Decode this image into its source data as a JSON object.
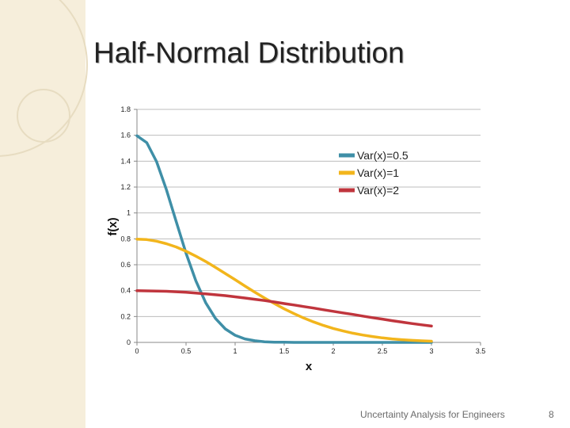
{
  "slide": {
    "title": "Half-Normal Distribution",
    "footer": "Uncertainty Analysis for Engineers",
    "page_number": "8"
  },
  "colors": {
    "background": "#ffffff",
    "sidebar": "#f6eedb",
    "decor_circle": "#e7dcc1"
  },
  "chart_data": {
    "type": "line",
    "xlabel": "x",
    "ylabel": "f(x)",
    "xlim": [
      0,
      3.5
    ],
    "ylim": [
      0,
      1.8
    ],
    "x_ticks": [
      "0",
      "0.5",
      "1",
      "1.5",
      "2",
      "2.5",
      "3",
      "3.5"
    ],
    "y_ticks": [
      "0",
      "0.2",
      "0.4",
      "0.6",
      "0.8",
      "1",
      "1.2",
      "1.4",
      "1.6",
      "1.8"
    ],
    "grid": "horizontal",
    "legend_position": "right",
    "x": [
      0,
      0.1,
      0.2,
      0.3,
      0.4,
      0.5,
      0.6,
      0.7,
      0.8,
      0.9,
      1.0,
      1.1,
      1.2,
      1.3,
      1.4,
      1.5,
      1.6,
      1.7,
      1.8,
      1.9,
      2.0,
      2.1,
      2.2,
      2.3,
      2.4,
      2.5,
      2.6,
      2.7,
      2.8,
      2.9,
      3.0
    ],
    "series": [
      {
        "name": "Var(x)=0.5",
        "color": "#3f8fa7",
        "values": [
          1.596,
          1.543,
          1.396,
          1.18,
          0.933,
          0.689,
          0.476,
          0.307,
          0.185,
          0.104,
          0.055,
          0.027,
          0.013,
          0.005,
          0.002,
          0.001,
          0.0,
          0.0,
          0.0,
          0.0,
          0.0,
          0.0,
          0.0,
          0.0,
          0.0,
          0.0,
          0.0,
          0.0,
          0.0,
          0.0,
          0.0
        ]
      },
      {
        "name": "Var(x)=1",
        "color": "#f2b51c",
        "values": [
          0.798,
          0.794,
          0.782,
          0.762,
          0.737,
          0.704,
          0.666,
          0.625,
          0.579,
          0.532,
          0.484,
          0.435,
          0.388,
          0.343,
          0.3,
          0.259,
          0.222,
          0.188,
          0.158,
          0.131,
          0.108,
          0.088,
          0.071,
          0.057,
          0.045,
          0.035,
          0.027,
          0.021,
          0.016,
          0.012,
          0.009
        ]
      },
      {
        "name": "Var(x)=2",
        "color": "#c0353d",
        "values": [
          0.399,
          0.398,
          0.397,
          0.395,
          0.391,
          0.387,
          0.381,
          0.375,
          0.368,
          0.361,
          0.352,
          0.343,
          0.333,
          0.323,
          0.312,
          0.3,
          0.289,
          0.277,
          0.265,
          0.252,
          0.24,
          0.228,
          0.216,
          0.203,
          0.191,
          0.18,
          0.168,
          0.157,
          0.146,
          0.136,
          0.126
        ]
      }
    ]
  }
}
